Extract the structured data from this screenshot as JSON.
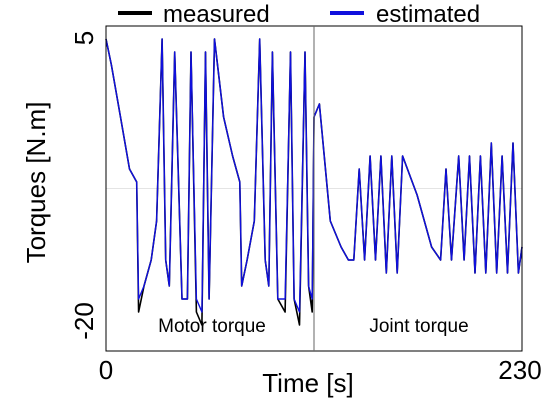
{
  "chart_data": {
    "type": "line",
    "xlabel": "Time [s]",
    "ylabel": "Torques [N.m]",
    "xlim": [
      0,
      230
    ],
    "ylim": [
      -20,
      5
    ],
    "x_tick_labels": [
      "0",
      "230"
    ],
    "y_tick_labels": [
      "5",
      "-20"
    ],
    "grid": true,
    "legend_position": "top",
    "divider_x": 115,
    "annotations": [
      "Motor torque",
      "Joint torque"
    ],
    "series": [
      {
        "name": "measured",
        "color": "#000000",
        "x": [
          0,
          3,
          8,
          13,
          17,
          18,
          21,
          25,
          28,
          31,
          33,
          35,
          38,
          42,
          45,
          47,
          50,
          53,
          55,
          57,
          60,
          65,
          70,
          74,
          75,
          78,
          82,
          85,
          88,
          90,
          92,
          95,
          99,
          102,
          104,
          107,
          110,
          112,
          114,
          115,
          118,
          124,
          130,
          134,
          137,
          140,
          143,
          146,
          149,
          152,
          155,
          158,
          161,
          164,
          172,
          180,
          185,
          188,
          191,
          195,
          198,
          201,
          204,
          207,
          210,
          213,
          216,
          219,
          222,
          225,
          228,
          230
        ],
        "y": [
          4,
          2,
          -2,
          -6,
          -7,
          -17,
          -15,
          -13,
          -10,
          4,
          -13,
          -15,
          3,
          -16,
          -16,
          3,
          -17,
          -18,
          3,
          -16,
          4,
          -2,
          -5,
          -7,
          -15,
          -13,
          -10,
          4,
          -13,
          -15,
          3,
          -16,
          -17,
          3,
          -16,
          -18,
          3,
          -15,
          -17,
          -2,
          -1,
          -10,
          -12,
          -13,
          -13,
          -6,
          -13,
          -5,
          -13,
          -5,
          -14,
          -5,
          -14,
          -5,
          -8,
          -12,
          -13,
          -6,
          -13,
          -5,
          -13,
          -5,
          -14,
          -5,
          -14,
          -4,
          -14,
          -5,
          -14,
          -4,
          -14,
          -12
        ]
      },
      {
        "name": "estimated",
        "color": "#1010dd",
        "x": [
          0,
          3,
          8,
          13,
          17,
          18,
          21,
          25,
          28,
          31,
          33,
          35,
          38,
          42,
          45,
          47,
          50,
          53,
          55,
          57,
          60,
          65,
          70,
          74,
          75,
          78,
          82,
          85,
          88,
          90,
          92,
          95,
          99,
          102,
          104,
          107,
          110,
          112,
          114,
          115,
          118,
          124,
          130,
          134,
          137,
          140,
          143,
          146,
          149,
          152,
          155,
          158,
          161,
          164,
          172,
          180,
          185,
          188,
          191,
          195,
          198,
          201,
          204,
          207,
          210,
          213,
          216,
          219,
          222,
          225,
          228,
          230
        ],
        "y": [
          4,
          2,
          -2,
          -6,
          -7,
          -16,
          -15,
          -13,
          -10,
          4,
          -13,
          -15,
          3,
          -16,
          -16,
          3,
          -16,
          -17,
          3,
          -16,
          4,
          -2,
          -5,
          -7,
          -15,
          -13,
          -10,
          4,
          -13,
          -15,
          3,
          -16,
          -16,
          3,
          -16,
          -17,
          3,
          -15,
          -16,
          -2,
          -1,
          -10,
          -12,
          -13,
          -13,
          -6,
          -13,
          -5,
          -13,
          -5,
          -14,
          -5,
          -14,
          -5,
          -8,
          -12,
          -13,
          -6,
          -13,
          -5,
          -13,
          -5,
          -14,
          -5,
          -14,
          -4,
          -14,
          -5,
          -14,
          -4,
          -14,
          -12
        ]
      }
    ]
  }
}
